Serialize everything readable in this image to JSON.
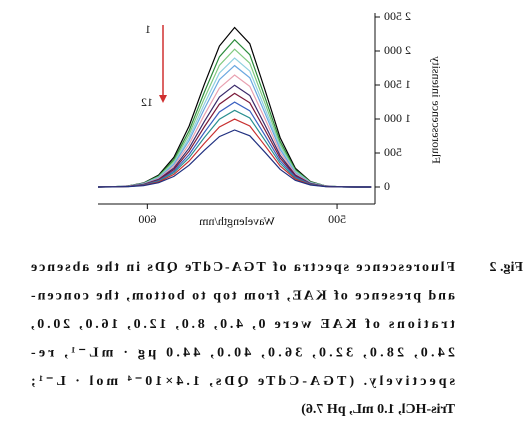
{
  "chart_data": {
    "type": "line",
    "x_label": "Wavelength/nm",
    "y_label": "Fluorescence intensity",
    "annotations": [
      "1",
      "12"
    ],
    "x": [
      482,
      490,
      498,
      506,
      514,
      522,
      530,
      538,
      546,
      554,
      562,
      570,
      578,
      586,
      594,
      602,
      610,
      618,
      626
    ],
    "xlim": [
      480,
      626
    ],
    "xticks": [
      500,
      600
    ],
    "ylim": [
      -250,
      2500
    ],
    "yticks": [
      0,
      500,
      {
        "value": 1000,
        "label": "1 000"
      },
      {
        "value": 1500,
        "label": "1 500"
      },
      {
        "value": 2000,
        "label": "2 000"
      },
      {
        "value": 2500,
        "label": "2 500"
      }
    ],
    "series": [
      {
        "color": "#000000",
        "values": [
          0,
          0,
          2,
          16,
          80,
          277,
          726,
          1426,
          2108,
          2345,
          2073,
          1504,
          895,
          437,
          176,
          59,
          16,
          5,
          0
        ]
      },
      {
        "color": "#2a8a3a",
        "values": [
          0,
          0,
          2,
          15,
          74,
          256,
          671,
          1317,
          1946,
          2166,
          1914,
          1389,
          827,
          404,
          163,
          54,
          15,
          4,
          0
        ]
      },
      {
        "color": "#7fc97f",
        "values": [
          0,
          0,
          2,
          14,
          69,
          240,
          627,
          1232,
          1821,
          2026,
          1790,
          1299,
          773,
          378,
          152,
          51,
          14,
          4,
          0
        ]
      },
      {
        "color": "#8fd0e0",
        "values": [
          0,
          0,
          2,
          13,
          65,
          224,
          587,
          1153,
          1704,
          1896,
          1676,
          1216,
          724,
          353,
          143,
          48,
          13,
          4,
          0
        ]
      },
      {
        "color": "#6aa8e0",
        "values": [
          0,
          0,
          2,
          13,
          61,
          211,
          553,
          1087,
          1606,
          1786,
          1579,
          1146,
          682,
          333,
          134,
          45,
          13,
          4,
          0
        ]
      },
      {
        "color": "#e8a0b0",
        "values": [
          0,
          0,
          2,
          12,
          56,
          195,
          510,
          1002,
          1480,
          1647,
          1455,
          1056,
          629,
          307,
          124,
          41,
          12,
          3,
          0
        ]
      },
      {
        "color": "#3a2a6a",
        "values": [
          0,
          0,
          2,
          11,
          51,
          177,
          464,
          911,
          1346,
          1497,
          1323,
          960,
          572,
          279,
          113,
          38,
          11,
          3,
          0
        ]
      },
      {
        "color": "#7a1a3a",
        "values": [
          0,
          0,
          1,
          10,
          47,
          163,
          426,
          838,
          1238,
          1377,
          1217,
          883,
          526,
          257,
          104,
          35,
          10,
          3,
          0
        ]
      },
      {
        "color": "#3a60c0",
        "values": [
          0,
          0,
          1,
          9,
          43,
          148,
          386,
          759,
          1121,
          1248,
          1103,
          800,
          476,
          233,
          94,
          31,
          9,
          3,
          0
        ]
      },
      {
        "color": "#2a9090",
        "values": [
          0,
          0,
          1,
          8,
          38,
          133,
          349,
          686,
          1014,
          1128,
          997,
          723,
          431,
          210,
          85,
          28,
          8,
          2,
          0
        ]
      },
      {
        "color": "#c83030",
        "values": [
          0,
          0,
          1,
          7,
          34,
          118,
          309,
          607,
          897,
          998,
          882,
          640,
          381,
          186,
          75,
          25,
          7,
          2,
          0
        ]
      },
      {
        "color": "#203080",
        "values": [
          0,
          0,
          1,
          6,
          29,
          99,
          260,
          510,
          753,
          838,
          741,
          538,
          320,
          156,
          63,
          21,
          6,
          2,
          0
        ]
      }
    ]
  },
  "caption": {
    "label": "Fig. 2",
    "lines": [
      "Fluorescence spectra of TGA-CdTe QDs in the absence",
      "and presence of KAE, from top to bottom, the concen-",
      "trations of KAE were 0, 4.0, 8.0, 12.0, 16.0, 20.0,",
      "24.0, 28.0, 32.0, 36.0, 40.0, 44.0 μg · mL⁻¹, re-",
      "spectively. (TGA-CdTe QDs, 1.4×10⁻⁴ mol · L⁻¹;",
      "Tris-HCl, 1.0 mL, pH 7.6)"
    ]
  }
}
